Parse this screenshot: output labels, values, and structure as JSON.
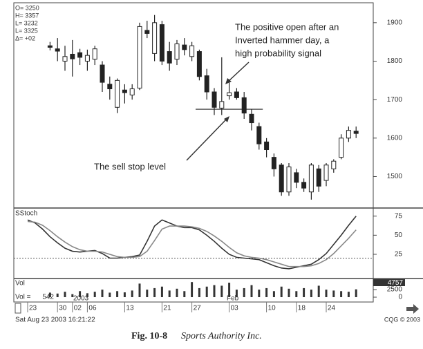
{
  "chart_data": [
    {
      "type": "candlestick",
      "readout": [
        "O= 3250",
        "H= 3357",
        "L= 3232",
        "L= 3325",
        "Δ= +02"
      ],
      "categories": [
        "23",
        null,
        null,
        null,
        "30",
        null,
        "02",
        null,
        "06",
        null,
        null,
        null,
        null,
        "13",
        null,
        null,
        null,
        null,
        "21",
        null,
        null,
        null,
        "27",
        null,
        null,
        null,
        null,
        "03",
        null,
        null,
        null,
        null,
        "10",
        null,
        null,
        null,
        "18",
        null,
        null,
        null,
        "24",
        null,
        null,
        null,
        null
      ],
      "open": [
        null,
        null,
        null,
        1840,
        1832,
        1800,
        1818,
        1822,
        1800,
        1805,
        1790,
        1740,
        1680,
        1725,
        1712,
        1730,
        1880,
        1820,
        1895,
        1825,
        1805,
        1842,
        1812,
        1825,
        1762,
        1720,
        1678,
        1710,
        1720,
        1705,
        1662,
        1630,
        1590,
        1550,
        1530,
        1460,
        1510,
        1485,
        1460,
        1520,
        1490,
        1520,
        1550,
        1600,
        1618
      ],
      "high": [
        null,
        null,
        null,
        1850,
        1860,
        1840,
        1855,
        1832,
        1830,
        1840,
        1800,
        1760,
        1755,
        1740,
        1740,
        1900,
        1905,
        1920,
        1905,
        1850,
        1855,
        1860,
        1850,
        1830,
        1780,
        1730,
        1810,
        1745,
        1730,
        1720,
        1675,
        1640,
        1600,
        1560,
        1535,
        1535,
        1520,
        1495,
        1535,
        1530,
        1535,
        1545,
        1610,
        1630,
        1630
      ],
      "low": [
        null,
        null,
        null,
        1828,
        1800,
        1775,
        1760,
        1790,
        1775,
        1790,
        1720,
        1700,
        1665,
        1690,
        1700,
        1725,
        1860,
        1800,
        1790,
        1775,
        1790,
        1815,
        1800,
        1750,
        1700,
        1660,
        1660,
        1700,
        1700,
        1650,
        1620,
        1570,
        1550,
        1500,
        1450,
        1450,
        1470,
        1460,
        1440,
        1460,
        1475,
        1510,
        1545,
        1590,
        1600
      ],
      "close": [
        null,
        null,
        null,
        1836,
        1826,
        1812,
        1806,
        1810,
        1815,
        1832,
        1745,
        1728,
        1750,
        1718,
        1728,
        1890,
        1872,
        1900,
        1800,
        1795,
        1845,
        1830,
        1840,
        1760,
        1720,
        1680,
        1695,
        1718,
        1705,
        1665,
        1640,
        1585,
        1570,
        1520,
        1460,
        1525,
        1485,
        1470,
        1530,
        1475,
        1530,
        1540,
        1600,
        1620,
        1612
      ],
      "ylim": [
        1420,
        1950
      ],
      "yticks": [
        1500,
        1600,
        1700,
        1800,
        1900
      ],
      "sell_stop": 1675,
      "annotations": [
        "The positive open after an",
        "Inverted hammer day, a",
        "high probability signal",
        "The sell stop level"
      ],
      "x_annotations": [
        "2003",
        "Feb"
      ],
      "footer": "Sat Aug 23 2003 16:21:22",
      "copyright": "CQG © 2003",
      "caption_number": "Fig. 10-8",
      "caption_title": "Sports Authority Inc."
    },
    {
      "type": "line",
      "label": "SStoch",
      "series": [
        {
          "color": "#333333",
          "values": [
            70,
            66,
            58,
            48,
            40,
            33,
            29,
            28,
            29,
            30,
            26,
            20,
            20,
            21,
            22,
            24,
            42,
            62,
            70,
            66,
            62,
            60,
            60,
            57,
            50,
            42,
            33,
            25,
            21,
            20,
            19,
            18,
            14,
            10,
            7,
            6,
            8,
            10,
            12,
            18,
            26,
            38,
            50,
            63,
            75
          ]
        },
        {
          "color": "#888888",
          "values": [
            68,
            67,
            63,
            56,
            48,
            41,
            35,
            31,
            29,
            29,
            28,
            25,
            22,
            21,
            21,
            22,
            29,
            43,
            58,
            62,
            62,
            62,
            61,
            59,
            55,
            49,
            42,
            34,
            27,
            23,
            21,
            20,
            18,
            15,
            12,
            9,
            9,
            9,
            10,
            13,
            18,
            26,
            36,
            46,
            57
          ]
        }
      ],
      "ylim": [
        -4,
        82
      ],
      "yticks": [
        25,
        50,
        75
      ],
      "ref_line": 20
    },
    {
      "type": "bar",
      "label": "Vol",
      "cursor_label": "Vol =",
      "cursor_value": 542,
      "last_value": 4757,
      "values": [
        null,
        null,
        null,
        1500,
        1200,
        1800,
        1000,
        2000,
        1300,
        1800,
        2500,
        1500,
        2000,
        1600,
        2200,
        4500,
        2500,
        3000,
        3500,
        2200,
        2800,
        2000,
        5000,
        3000,
        3500,
        4000,
        3800,
        4800,
        2500,
        3000,
        4000,
        2500,
        3000,
        2000,
        3500,
        2800,
        2000,
        3000,
        2500,
        3800,
        2500,
        2200,
        2000,
        1800,
        2600
      ],
      "color": "#333333",
      "ylim": [
        0,
        5500
      ],
      "yticks": [
        0,
        2500
      ]
    }
  ]
}
